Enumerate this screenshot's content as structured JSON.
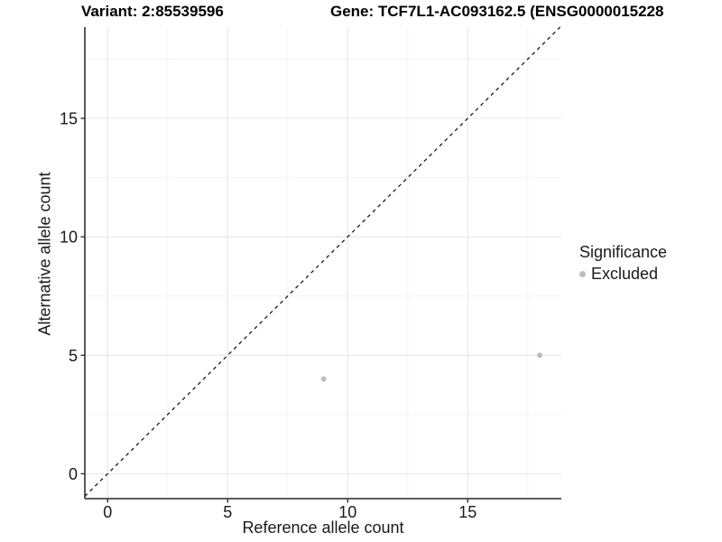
{
  "header": {
    "variant_title": "Variant: 2:85539596",
    "gene_title": "Gene: TCF7L1-AC093162.5 (ENSG0000015228"
  },
  "legend": {
    "title": "Significance",
    "items": [
      {
        "label": "Excluded",
        "color": "#bdbdbd"
      }
    ],
    "position": "right"
  },
  "chart_data": {
    "type": "scatter",
    "title_left": "Variant: 2:85539596",
    "title_right": "Gene: TCF7L1-AC093162.5 (ENSG0000015228",
    "xlabel": "Reference allele count",
    "ylabel": "Alternative allele count",
    "xlim": [
      -0.95,
      18.9
    ],
    "ylim": [
      -1.05,
      18.85
    ],
    "x_ticks": [
      0,
      5,
      10,
      15
    ],
    "y_ticks": [
      0,
      5,
      10,
      15
    ],
    "x_minor_ticks": [
      2.5,
      7.5,
      12.5,
      17.5
    ],
    "y_minor_ticks": [
      2.5,
      7.5,
      12.5,
      17.5
    ],
    "grid": "major+minor",
    "identity_line": {
      "style": "dashed",
      "equation": "y = x"
    },
    "series": [
      {
        "name": "Excluded",
        "color": "#bdbdbd",
        "points": [
          {
            "x": 9,
            "y": 4
          },
          {
            "x": 18,
            "y": 5
          }
        ]
      }
    ],
    "colors": {
      "grid_major": "#e7e7e7",
      "grid_minor": "#f2f2f2",
      "axis_line": "#484848",
      "tick_mark": "#333333",
      "tick_label": "#1a1a1a",
      "identity_line": "#1a1a1a",
      "point": "#bdbdbd"
    }
  }
}
